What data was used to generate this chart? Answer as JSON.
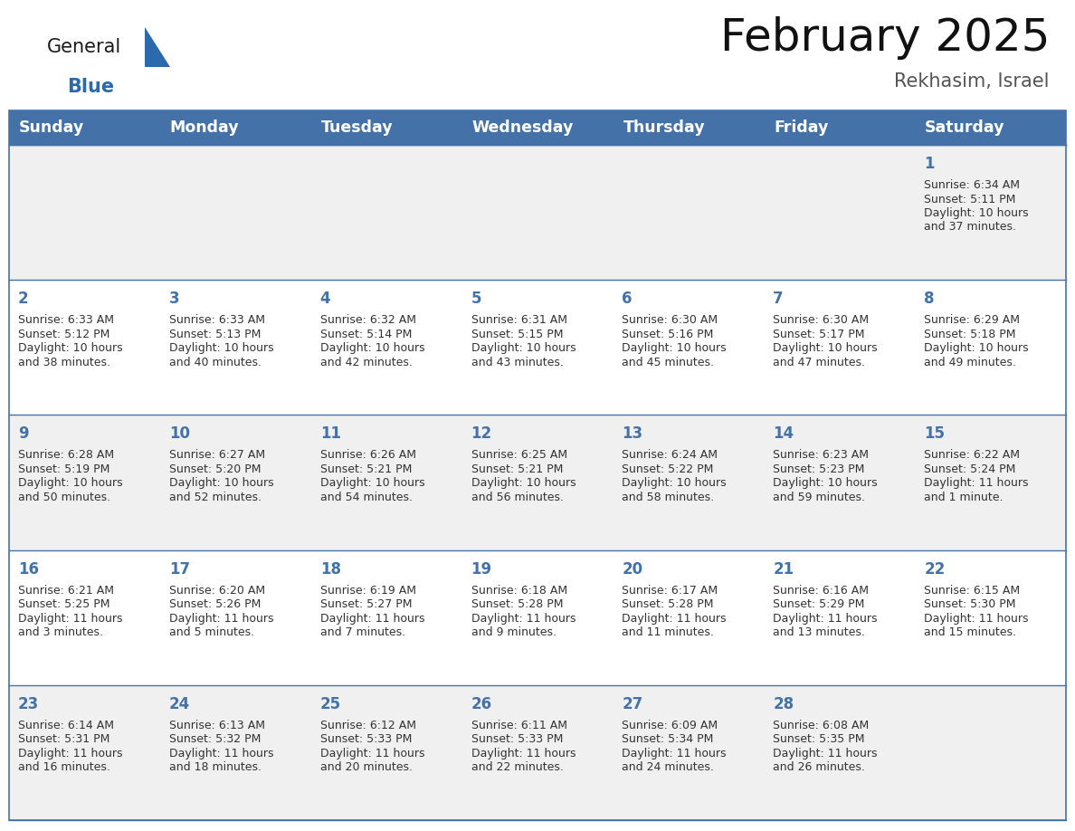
{
  "title": "February 2025",
  "subtitle": "Rekhasim, Israel",
  "days_of_week": [
    "Sunday",
    "Monday",
    "Tuesday",
    "Wednesday",
    "Thursday",
    "Friday",
    "Saturday"
  ],
  "header_bg": "#4472a8",
  "header_text": "#ffffff",
  "row_bg_odd": "#f0f0f0",
  "row_bg_even": "#ffffff",
  "border_color": "#4472a8",
  "day_num_color": "#4472a8",
  "text_color": "#333333",
  "logo_general_color": "#1a1a1a",
  "logo_blue_color": "#2a6aad",
  "logo_triangle_color": "#2a6aad",
  "calendar_data": [
    [
      null,
      null,
      null,
      null,
      null,
      null,
      {
        "day": 1,
        "sunrise": "6:34 AM",
        "sunset": "5:11 PM",
        "daylight": "10 hours",
        "daylight2": "and 37 minutes."
      }
    ],
    [
      {
        "day": 2,
        "sunrise": "6:33 AM",
        "sunset": "5:12 PM",
        "daylight": "10 hours",
        "daylight2": "and 38 minutes."
      },
      {
        "day": 3,
        "sunrise": "6:33 AM",
        "sunset": "5:13 PM",
        "daylight": "10 hours",
        "daylight2": "and 40 minutes."
      },
      {
        "day": 4,
        "sunrise": "6:32 AM",
        "sunset": "5:14 PM",
        "daylight": "10 hours",
        "daylight2": "and 42 minutes."
      },
      {
        "day": 5,
        "sunrise": "6:31 AM",
        "sunset": "5:15 PM",
        "daylight": "10 hours",
        "daylight2": "and 43 minutes."
      },
      {
        "day": 6,
        "sunrise": "6:30 AM",
        "sunset": "5:16 PM",
        "daylight": "10 hours",
        "daylight2": "and 45 minutes."
      },
      {
        "day": 7,
        "sunrise": "6:30 AM",
        "sunset": "5:17 PM",
        "daylight": "10 hours",
        "daylight2": "and 47 minutes."
      },
      {
        "day": 8,
        "sunrise": "6:29 AM",
        "sunset": "5:18 PM",
        "daylight": "10 hours",
        "daylight2": "and 49 minutes."
      }
    ],
    [
      {
        "day": 9,
        "sunrise": "6:28 AM",
        "sunset": "5:19 PM",
        "daylight": "10 hours",
        "daylight2": "and 50 minutes."
      },
      {
        "day": 10,
        "sunrise": "6:27 AM",
        "sunset": "5:20 PM",
        "daylight": "10 hours",
        "daylight2": "and 52 minutes."
      },
      {
        "day": 11,
        "sunrise": "6:26 AM",
        "sunset": "5:21 PM",
        "daylight": "10 hours",
        "daylight2": "and 54 minutes."
      },
      {
        "day": 12,
        "sunrise": "6:25 AM",
        "sunset": "5:21 PM",
        "daylight": "10 hours",
        "daylight2": "and 56 minutes."
      },
      {
        "day": 13,
        "sunrise": "6:24 AM",
        "sunset": "5:22 PM",
        "daylight": "10 hours",
        "daylight2": "and 58 minutes."
      },
      {
        "day": 14,
        "sunrise": "6:23 AM",
        "sunset": "5:23 PM",
        "daylight": "10 hours",
        "daylight2": "and 59 minutes."
      },
      {
        "day": 15,
        "sunrise": "6:22 AM",
        "sunset": "5:24 PM",
        "daylight": "11 hours",
        "daylight2": "and 1 minute."
      }
    ],
    [
      {
        "day": 16,
        "sunrise": "6:21 AM",
        "sunset": "5:25 PM",
        "daylight": "11 hours",
        "daylight2": "and 3 minutes."
      },
      {
        "day": 17,
        "sunrise": "6:20 AM",
        "sunset": "5:26 PM",
        "daylight": "11 hours",
        "daylight2": "and 5 minutes."
      },
      {
        "day": 18,
        "sunrise": "6:19 AM",
        "sunset": "5:27 PM",
        "daylight": "11 hours",
        "daylight2": "and 7 minutes."
      },
      {
        "day": 19,
        "sunrise": "6:18 AM",
        "sunset": "5:28 PM",
        "daylight": "11 hours",
        "daylight2": "and 9 minutes."
      },
      {
        "day": 20,
        "sunrise": "6:17 AM",
        "sunset": "5:28 PM",
        "daylight": "11 hours",
        "daylight2": "and 11 minutes."
      },
      {
        "day": 21,
        "sunrise": "6:16 AM",
        "sunset": "5:29 PM",
        "daylight": "11 hours",
        "daylight2": "and 13 minutes."
      },
      {
        "day": 22,
        "sunrise": "6:15 AM",
        "sunset": "5:30 PM",
        "daylight": "11 hours",
        "daylight2": "and 15 minutes."
      }
    ],
    [
      {
        "day": 23,
        "sunrise": "6:14 AM",
        "sunset": "5:31 PM",
        "daylight": "11 hours",
        "daylight2": "and 16 minutes."
      },
      {
        "day": 24,
        "sunrise": "6:13 AM",
        "sunset": "5:32 PM",
        "daylight": "11 hours",
        "daylight2": "and 18 minutes."
      },
      {
        "day": 25,
        "sunrise": "6:12 AM",
        "sunset": "5:33 PM",
        "daylight": "11 hours",
        "daylight2": "and 20 minutes."
      },
      {
        "day": 26,
        "sunrise": "6:11 AM",
        "sunset": "5:33 PM",
        "daylight": "11 hours",
        "daylight2": "and 22 minutes."
      },
      {
        "day": 27,
        "sunrise": "6:09 AM",
        "sunset": "5:34 PM",
        "daylight": "11 hours",
        "daylight2": "and 24 minutes."
      },
      {
        "day": 28,
        "sunrise": "6:08 AM",
        "sunset": "5:35 PM",
        "daylight": "11 hours",
        "daylight2": "and 26 minutes."
      },
      null
    ]
  ]
}
